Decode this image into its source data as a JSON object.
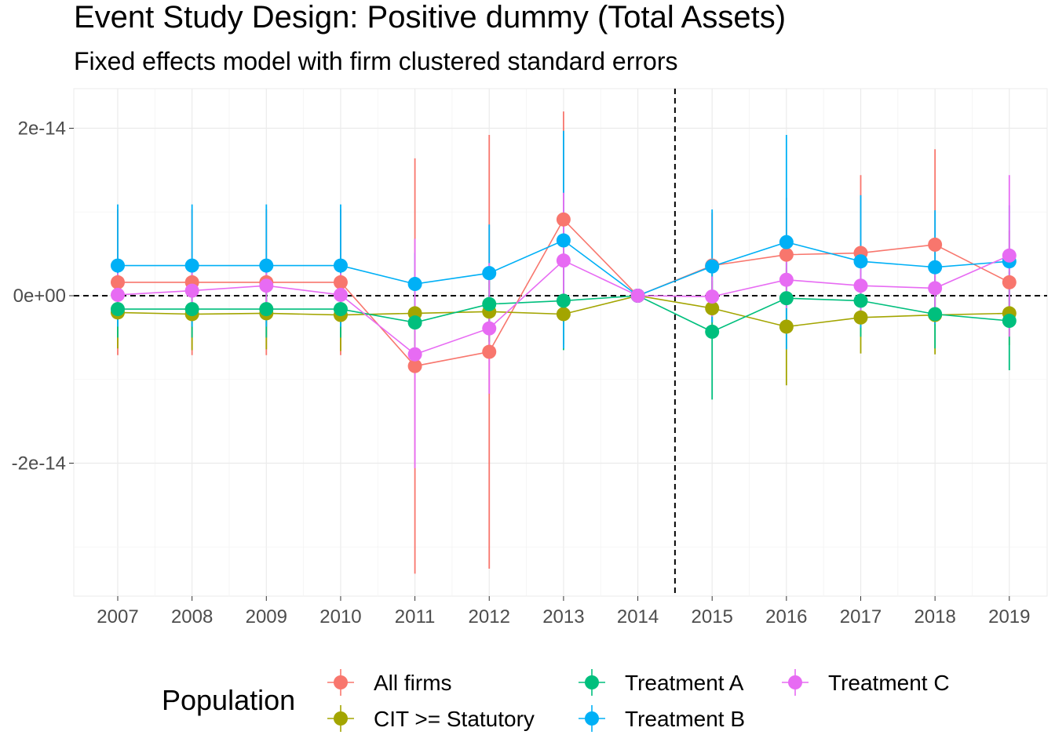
{
  "chart_data": {
    "type": "line",
    "title": "Event Study Design: Positive dummy (Total Assets)",
    "subtitle": "Fixed effects model with firm clustered standard errors",
    "xlabel": "",
    "ylabel": "",
    "x": [
      "2007",
      "2008",
      "2009",
      "2010",
      "2011",
      "2012",
      "2013",
      "2014",
      "2015",
      "2016",
      "2017",
      "2018",
      "2019"
    ],
    "y_ticks": [
      -2e-14,
      0,
      2e-14
    ],
    "y_tick_labels": [
      "-2e-14",
      "0e+00",
      "2e-14"
    ],
    "ylim": [
      -3.6e-14,
      2.45e-14
    ],
    "vline_between": [
      "2014",
      "2015"
    ],
    "hline": 0,
    "grid": true,
    "legend": {
      "title": "Population",
      "position": "bottom",
      "entries": [
        "All firms",
        "CIT >= Statutory",
        "Treatment A",
        "Treatment B",
        "Treatment C"
      ]
    },
    "series": [
      {
        "name": "All firms",
        "color": "#F8766D",
        "values": [
          1.6e-15,
          1.6e-15,
          1.6e-15,
          1.6e-15,
          -8.4e-15,
          -6.7e-15,
          9.1e-15,
          0,
          3.6e-15,
          4.9e-15,
          5.1e-15,
          6.1e-15,
          1.6e-15
        ],
        "lower": [
          -7.1e-15,
          -7.1e-15,
          -7.1e-15,
          -7.1e-15,
          -3.32e-14,
          -3.26e-14,
          -3e-15,
          0,
          -1.9e-15,
          -1.1e-15,
          -2.1e-15,
          -3.4e-15,
          -4e-15
        ],
        "upper": [
          1.03e-14,
          1.03e-14,
          1.03e-14,
          1.03e-14,
          1.64e-14,
          1.92e-14,
          2.2e-14,
          0,
          9.9e-15,
          1.17e-14,
          1.44e-14,
          1.75e-14,
          7.8e-15
        ]
      },
      {
        "name": "CIT >= Statutory",
        "color": "#A3A500",
        "values": [
          -2e-15,
          -2.2e-15,
          -2.1e-15,
          -2.3e-15,
          -2.1e-15,
          -1.9e-15,
          -2.2e-15,
          0,
          -1.5e-15,
          -3.7e-15,
          -2.6e-15,
          -2.3e-15,
          -2.1e-15
        ],
        "lower": [
          -6.3e-15,
          -6.5e-15,
          -6.4e-15,
          -6.6e-15,
          -6e-15,
          -6.2e-15,
          -5.8e-15,
          0,
          -4.8e-15,
          -1.07e-14,
          -6.9e-15,
          -7e-15,
          -5.9e-15
        ],
        "upper": [
          2.3e-15,
          2.1e-15,
          2.2e-15,
          2e-15,
          1.8e-15,
          2.4e-15,
          1.4e-15,
          0,
          1.8e-15,
          3.3e-15,
          1.7e-15,
          2.4e-15,
          1.7e-15
        ]
      },
      {
        "name": "Treatment A",
        "color": "#00BF7D",
        "values": [
          -1.6e-15,
          -1.6e-15,
          -1.6e-15,
          -1.6e-15,
          -3.2e-15,
          -1e-15,
          -6e-16,
          0,
          -4.3e-15,
          -3e-16,
          -6e-16,
          -2.2e-15,
          -3e-15
        ],
        "lower": [
          -5e-15,
          -5e-15,
          -5e-15,
          -5e-15,
          -8e-15,
          -5.5e-15,
          -6.5e-15,
          0,
          -1.24e-14,
          -4.5e-15,
          -4.9e-15,
          -6.3e-15,
          -8.9e-15
        ],
        "upper": [
          1.8e-15,
          1.8e-15,
          1.8e-15,
          1.8e-15,
          1.6e-15,
          3.5e-15,
          5.3e-15,
          0,
          3.8e-15,
          3.9e-15,
          3.7e-15,
          1.9e-15,
          2.9e-15
        ]
      },
      {
        "name": "Treatment B",
        "color": "#00B0F6",
        "values": [
          3.6e-15,
          3.6e-15,
          3.6e-15,
          3.6e-15,
          1.4e-15,
          2.7e-15,
          6.6e-15,
          0,
          3.5e-15,
          6.4e-15,
          4.1e-15,
          3.4e-15,
          4.1e-15
        ],
        "lower": [
          -3.7e-15,
          -3.7e-15,
          -3.7e-15,
          -3.7e-15,
          -2.3e-15,
          -3.1e-15,
          -6.3e-15,
          0,
          -3.2e-15,
          -6.4e-15,
          -3.8e-15,
          -3.4e-15,
          -2.6e-15
        ],
        "upper": [
          1.09e-14,
          1.09e-14,
          1.09e-14,
          1.09e-14,
          5.1e-15,
          8.5e-15,
          1.97e-14,
          0,
          1.03e-14,
          1.92e-14,
          1.2e-14,
          1.02e-14,
          1.08e-14
        ]
      },
      {
        "name": "Treatment C",
        "color": "#E76BF3",
        "values": [
          1e-16,
          6e-16,
          1.2e-15,
          1e-16,
          -7e-15,
          -3.9e-15,
          4.2e-15,
          0,
          -1e-16,
          1.9e-15,
          1.2e-15,
          9e-16,
          4.8e-15
        ],
        "lower": [
          -2.5e-15,
          -2e-15,
          -1.4e-15,
          -2.5e-15,
          -2.06e-14,
          -1.17e-14,
          -3e-15,
          0,
          -2.5e-15,
          -1.5e-15,
          -2e-15,
          -2e-15,
          -4.9e-15
        ],
        "upper": [
          2.7e-15,
          3.2e-15,
          3.8e-15,
          2.7e-15,
          6.8e-15,
          3.9e-15,
          1.23e-14,
          0,
          2.3e-15,
          5.3e-15,
          4.4e-15,
          3.8e-15,
          1.44e-14
        ]
      }
    ]
  }
}
